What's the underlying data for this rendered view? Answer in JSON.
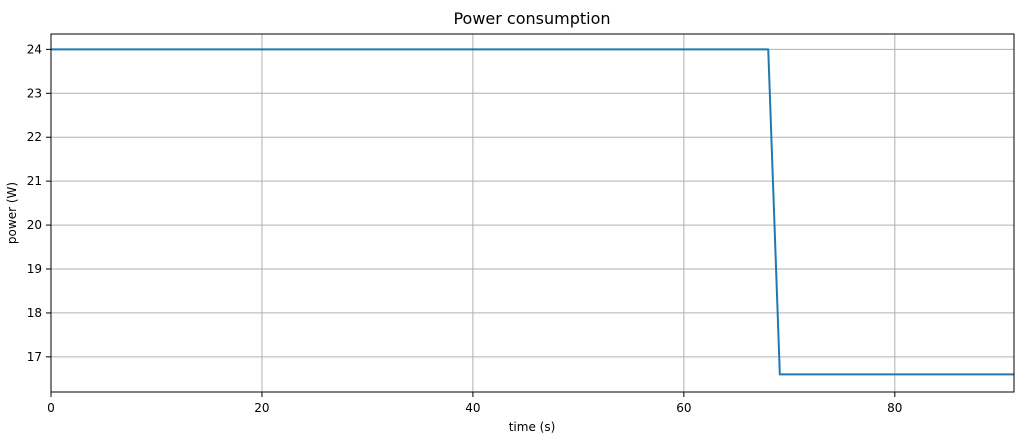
{
  "chart_data": {
    "type": "line",
    "title": "Power consumption",
    "xlabel": "time (s)",
    "ylabel": "power (W)",
    "xlim": [
      0,
      91.3
    ],
    "ylim": [
      16.2,
      24.35
    ],
    "xticks": [
      0,
      20,
      40,
      60,
      80
    ],
    "yticks": [
      17,
      18,
      19,
      20,
      21,
      22,
      23,
      24
    ],
    "grid": true,
    "series": [
      {
        "color": "#1f77b4",
        "x": [
          0,
          68.0,
          69.1,
          91.3
        ],
        "y": [
          24.0,
          24.0,
          16.6,
          16.6
        ]
      }
    ]
  }
}
